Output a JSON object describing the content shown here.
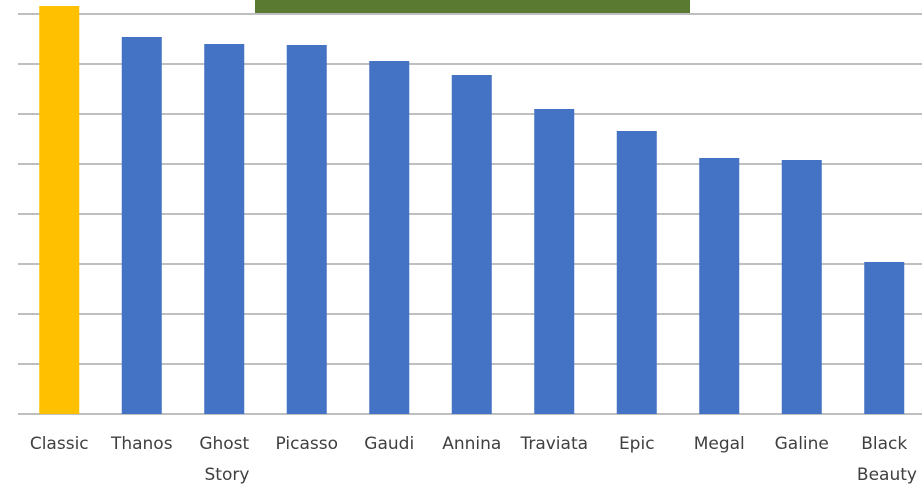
{
  "chart_data": {
    "type": "bar",
    "categories": [
      "Classic",
      "Thanos",
      "Ghost Story",
      "Picasso",
      "Gaudi",
      "Annina",
      "Traviata",
      "Epic",
      "Megal",
      "Galine",
      "Black Beauty"
    ],
    "values": [
      8.16,
      7.54,
      7.4,
      7.38,
      7.06,
      6.78,
      6.1,
      5.66,
      5.12,
      5.08,
      3.04
    ],
    "colors": [
      "#ffc000",
      "#4472c4",
      "#4472c4",
      "#4472c4",
      "#4472c4",
      "#4472c4",
      "#4472c4",
      "#4472c4",
      "#4472c4",
      "#4472c4",
      "#4472c4"
    ],
    "ylim": [
      0,
      8.28
    ],
    "yticks": [
      0,
      1,
      2,
      3,
      4,
      5,
      6,
      7,
      8
    ],
    "grid": true
  }
}
